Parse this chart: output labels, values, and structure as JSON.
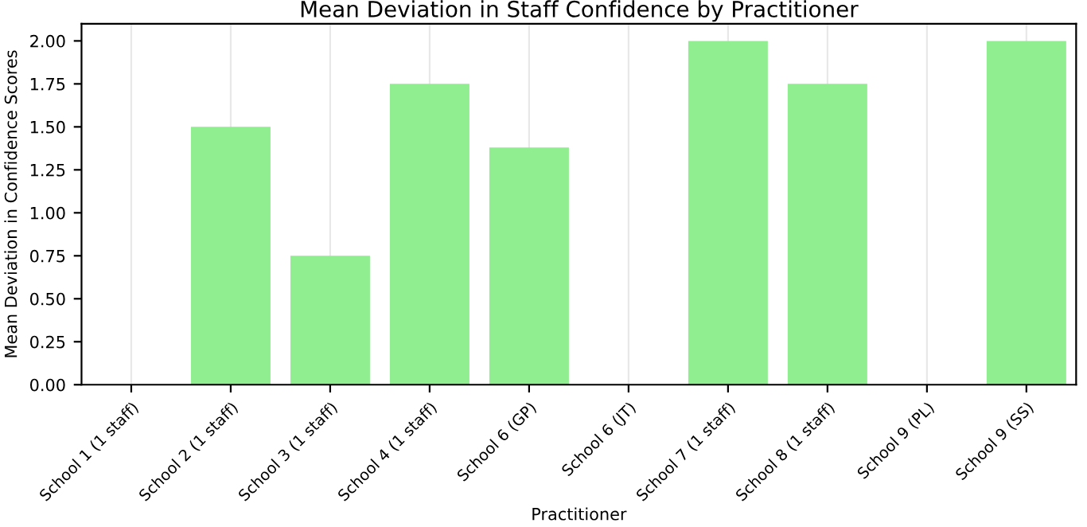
{
  "chart_data": {
    "type": "bar",
    "title": "Mean Deviation in Staff Confidence by Practitioner",
    "xlabel": "Practitioner",
    "ylabel": "Mean Deviation in Confidence Scores",
    "categories": [
      "School 1 (1 staff)",
      "School 2 (1 staff)",
      "School 3 (1 staff)",
      "School 4 (1 staff)",
      "School 6 (GP)",
      "School 6 (JT)",
      "School 7 (1 staff)",
      "School 8 (1 staff)",
      "School 9 (PL)",
      "School 9 (SS)"
    ],
    "values": [
      0,
      1.5,
      0.75,
      1.75,
      1.38,
      0,
      2.0,
      1.75,
      0,
      2.0
    ],
    "color": "#90ee90",
    "ylim": [
      0,
      2.1
    ],
    "yticks": [
      {
        "value": 0,
        "label": "0.00"
      },
      {
        "value": 0.25,
        "label": "0.25"
      },
      {
        "value": 0.5,
        "label": "0.50"
      },
      {
        "value": 0.75,
        "label": "0.75"
      },
      {
        "value": 1.0,
        "label": "1.00"
      },
      {
        "value": 1.25,
        "label": "1.25"
      },
      {
        "value": 1.5,
        "label": "1.50"
      },
      {
        "value": 1.75,
        "label": "1.75"
      },
      {
        "value": 2.0,
        "label": "2.00"
      }
    ],
    "grid": "x"
  }
}
